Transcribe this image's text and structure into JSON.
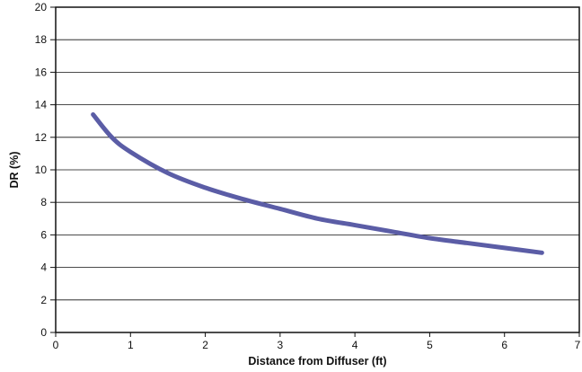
{
  "chart_data": {
    "type": "line",
    "title": "",
    "xlabel": "Distance from Diffuser (ft)",
    "ylabel": "DR (%)",
    "xlim": [
      0,
      7
    ],
    "ylim": [
      0,
      20
    ],
    "x_ticks": [
      "0",
      "1",
      "2",
      "3",
      "4",
      "5",
      "6",
      "7"
    ],
    "y_ticks": [
      "0",
      "2",
      "4",
      "6",
      "8",
      "10",
      "12",
      "14",
      "16",
      "18",
      "20"
    ],
    "grid": "horizontal",
    "legend": "none",
    "line_color": "#5b5da6",
    "series": [
      {
        "x": [
          0.5,
          0.75,
          1.0,
          1.5,
          2.0,
          2.5,
          3.0,
          3.5,
          4.0,
          4.5,
          5.0,
          5.5,
          6.0,
          6.5
        ],
        "y": [
          13.4,
          12.0,
          11.1,
          9.8,
          8.9,
          8.2,
          7.6,
          7.0,
          6.6,
          6.2,
          5.8,
          5.5,
          5.2,
          4.9
        ]
      }
    ]
  }
}
